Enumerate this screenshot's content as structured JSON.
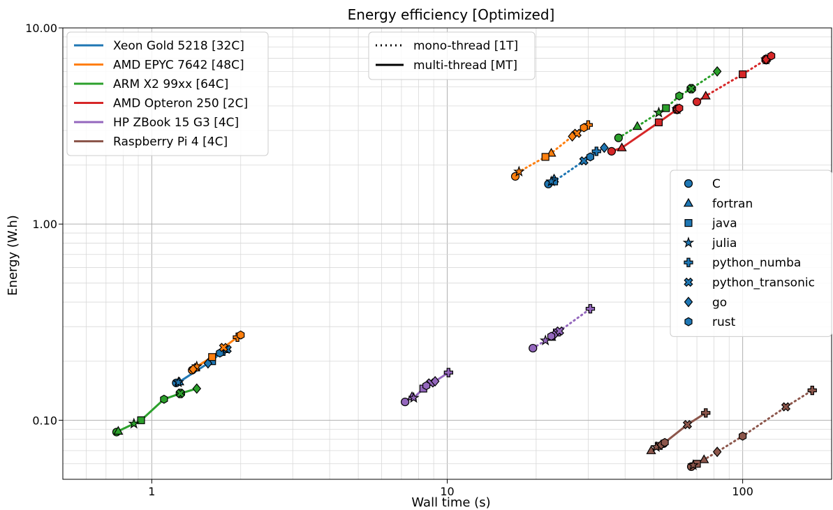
{
  "chart_data": {
    "type": "scatter",
    "title": "Energy efficiency [Optimized]",
    "xlabel": "Wall time (s)",
    "ylabel": "Energy (W.h)",
    "xscale": "log",
    "yscale": "log",
    "xlim": [
      0.5,
      200
    ],
    "ylim": [
      0.05,
      10
    ],
    "x_ticks": [
      {
        "value": 1,
        "label": "1"
      },
      {
        "value": 10,
        "label": "10"
      },
      {
        "value": 100,
        "label": "100"
      }
    ],
    "y_ticks": [
      {
        "value": 0.1,
        "label": "0.10"
      },
      {
        "value": 1,
        "label": "1.00"
      },
      {
        "value": 10,
        "label": "10.00"
      }
    ],
    "grid": true,
    "legends": {
      "machines": {
        "placement": "top-left",
        "items": [
          {
            "label": "Xeon Gold 5218 [32C]",
            "color": "#1f77b4"
          },
          {
            "label": "AMD EPYC 7642 [48C]",
            "color": "#ff7f0e"
          },
          {
            "label": "ARM X2 99xx [64C]",
            "color": "#2ca02c"
          },
          {
            "label": "AMD Opteron 250 [2C]",
            "color": "#d62728"
          },
          {
            "label": "HP ZBook 15 G3 [4C]",
            "color": "#9467bd"
          },
          {
            "label": "Raspberry Pi 4 [4C]",
            "color": "#8c564b"
          }
        ]
      },
      "threads": {
        "placement": "top-center",
        "items": [
          {
            "label": "mono-thread [1T]",
            "style": "dotted"
          },
          {
            "label": "multi-thread [MT]",
            "style": "solid"
          }
        ]
      },
      "languages": {
        "placement": "center-right",
        "items": [
          {
            "label": "C",
            "marker": "circle"
          },
          {
            "label": "fortran",
            "marker": "triangle"
          },
          {
            "label": "java",
            "marker": "square"
          },
          {
            "label": "julia",
            "marker": "star"
          },
          {
            "label": "python_numba",
            "marker": "plus"
          },
          {
            "label": "python_transonic",
            "marker": "x"
          },
          {
            "label": "go",
            "marker": "diamond"
          },
          {
            "label": "rust",
            "marker": "hexagon"
          }
        ]
      }
    },
    "series": [
      {
        "machine": "Xeon Gold 5218 [32C]",
        "mode": "multi-thread [MT]",
        "color": "#1f77b4",
        "style": "solid",
        "points": [
          {
            "lang": "C",
            "marker": "circle",
            "x": 1.21,
            "y": 0.155
          },
          {
            "lang": "fortran",
            "marker": "triangle",
            "x": 1.24,
            "y": 0.157
          },
          {
            "lang": "java",
            "marker": "square",
            "x": 1.6,
            "y": 0.2
          },
          {
            "lang": "julia",
            "marker": "star",
            "x": 1.23,
            "y": 0.156
          },
          {
            "lang": "python_numba",
            "marker": "plus",
            "x": 1.75,
            "y": 0.225
          },
          {
            "lang": "python_transonic",
            "marker": "x",
            "x": 1.8,
            "y": 0.23
          },
          {
            "lang": "go",
            "marker": "diamond",
            "x": 1.55,
            "y": 0.195
          },
          {
            "lang": "rust",
            "marker": "hexagon",
            "x": 1.7,
            "y": 0.22
          }
        ]
      },
      {
        "machine": "Xeon Gold 5218 [32C]",
        "mode": "mono-thread [1T]",
        "color": "#1f77b4",
        "style": "dotted",
        "points": [
          {
            "lang": "C",
            "marker": "circle",
            "x": 22,
            "y": 1.6
          },
          {
            "lang": "fortran",
            "marker": "triangle",
            "x": 23,
            "y": 1.7
          },
          {
            "lang": "java",
            "marker": "square",
            "x": 23,
            "y": 1.65
          },
          {
            "lang": "julia",
            "marker": "star",
            "x": 22.5,
            "y": 1.65
          },
          {
            "lang": "python_numba",
            "marker": "plus",
            "x": 32,
            "y": 2.35
          },
          {
            "lang": "python_transonic",
            "marker": "x",
            "x": 29,
            "y": 2.1
          },
          {
            "lang": "go",
            "marker": "diamond",
            "x": 34,
            "y": 2.45
          },
          {
            "lang": "rust",
            "marker": "hexagon",
            "x": 30.5,
            "y": 2.2
          }
        ]
      },
      {
        "machine": "AMD EPYC 7642 [48C]",
        "mode": "multi-thread [MT]",
        "color": "#ff7f0e",
        "style": "solid",
        "points": [
          {
            "lang": "C",
            "marker": "circle",
            "x": 1.37,
            "y": 0.18
          },
          {
            "lang": "fortran",
            "marker": "triangle",
            "x": 1.4,
            "y": 0.185
          },
          {
            "lang": "java",
            "marker": "square",
            "x": 1.6,
            "y": 0.21
          },
          {
            "lang": "julia",
            "marker": "star",
            "x": 1.42,
            "y": 0.188
          },
          {
            "lang": "python_numba",
            "marker": "plus",
            "x": 1.95,
            "y": 0.265
          },
          {
            "lang": "python_transonic",
            "marker": "x",
            "x": 1.75,
            "y": 0.235
          },
          {
            "lang": "go",
            "marker": "diamond",
            "x": 1.38,
            "y": 0.182
          },
          {
            "lang": "rust",
            "marker": "hexagon",
            "x": 2.0,
            "y": 0.272
          }
        ]
      },
      {
        "machine": "AMD EPYC 7642 [48C]",
        "mode": "mono-thread [1T]",
        "color": "#ff7f0e",
        "style": "dotted",
        "points": [
          {
            "lang": "C",
            "marker": "circle",
            "x": 17,
            "y": 1.75
          },
          {
            "lang": "fortran",
            "marker": "triangle",
            "x": 22.5,
            "y": 2.3
          },
          {
            "lang": "java",
            "marker": "square",
            "x": 21.5,
            "y": 2.2
          },
          {
            "lang": "julia",
            "marker": "star",
            "x": 17.5,
            "y": 1.85
          },
          {
            "lang": "python_numba",
            "marker": "plus",
            "x": 30,
            "y": 3.2
          },
          {
            "lang": "python_transonic",
            "marker": "x",
            "x": 27.5,
            "y": 2.9
          },
          {
            "lang": "go",
            "marker": "diamond",
            "x": 26.5,
            "y": 2.8
          },
          {
            "lang": "rust",
            "marker": "hexagon",
            "x": 29,
            "y": 3.1
          }
        ]
      },
      {
        "machine": "ARM X2 99xx [64C]",
        "mode": "multi-thread [MT]",
        "color": "#2ca02c",
        "style": "solid",
        "points": [
          {
            "lang": "C",
            "marker": "circle",
            "x": 0.76,
            "y": 0.087
          },
          {
            "lang": "fortran",
            "marker": "triangle",
            "x": 0.77,
            "y": 0.088
          },
          {
            "lang": "java",
            "marker": "square",
            "x": 0.92,
            "y": 0.1
          },
          {
            "lang": "julia",
            "marker": "star",
            "x": 0.87,
            "y": 0.096
          },
          {
            "lang": "python_numba",
            "marker": "plus",
            "x": 1.25,
            "y": 0.137
          },
          {
            "lang": "python_transonic",
            "marker": "x",
            "x": 1.25,
            "y": 0.137
          },
          {
            "lang": "go",
            "marker": "diamond",
            "x": 1.42,
            "y": 0.145
          },
          {
            "lang": "rust",
            "marker": "hexagon",
            "x": 1.1,
            "y": 0.128
          }
        ]
      },
      {
        "machine": "ARM X2 99xx [64C]",
        "mode": "mono-thread [1T]",
        "color": "#2ca02c",
        "style": "dotted",
        "points": [
          {
            "lang": "C",
            "marker": "circle",
            "x": 38,
            "y": 2.75
          },
          {
            "lang": "fortran",
            "marker": "triangle",
            "x": 44,
            "y": 3.15
          },
          {
            "lang": "java",
            "marker": "square",
            "x": 55,
            "y": 3.9
          },
          {
            "lang": "julia",
            "marker": "star",
            "x": 52,
            "y": 3.7
          },
          {
            "lang": "python_numba",
            "marker": "plus",
            "x": 67,
            "y": 4.9
          },
          {
            "lang": "python_transonic",
            "marker": "x",
            "x": 67,
            "y": 4.9
          },
          {
            "lang": "go",
            "marker": "diamond",
            "x": 82,
            "y": 6.0
          },
          {
            "lang": "rust",
            "marker": "hexagon",
            "x": 61,
            "y": 4.5
          }
        ]
      },
      {
        "machine": "AMD Opteron 250 [2C]",
        "mode": "multi-thread [MT]",
        "color": "#d62728",
        "style": "solid",
        "points": [
          {
            "lang": "C",
            "marker": "circle",
            "x": 36,
            "y": 2.35
          },
          {
            "lang": "fortran",
            "marker": "triangle",
            "x": 39,
            "y": 2.45
          },
          {
            "lang": "java",
            "marker": "square",
            "x": 52,
            "y": 3.3
          },
          {
            "lang": "julia",
            "marker": "star",
            "x": 60,
            "y": 3.85
          },
          {
            "lang": "python_numba",
            "marker": "plus",
            "x": 60,
            "y": 3.85
          },
          {
            "lang": "python_transonic",
            "marker": "x",
            "x": 60,
            "y": 3.85
          },
          {
            "lang": "go",
            "marker": "diamond",
            "x": 60,
            "y": 3.85
          },
          {
            "lang": "rust",
            "marker": "hexagon",
            "x": 61,
            "y": 3.9
          }
        ]
      },
      {
        "machine": "AMD Opteron 250 [2C]",
        "mode": "mono-thread [1T]",
        "color": "#d62728",
        "style": "dotted",
        "points": [
          {
            "lang": "C",
            "marker": "circle",
            "x": 70,
            "y": 4.2
          },
          {
            "lang": "fortran",
            "marker": "triangle",
            "x": 75,
            "y": 4.5
          },
          {
            "lang": "java",
            "marker": "square",
            "x": 100,
            "y": 5.8
          },
          {
            "lang": "julia",
            "marker": "star",
            "x": 120,
            "y": 6.9
          },
          {
            "lang": "python_numba",
            "marker": "plus",
            "x": 120,
            "y": 6.9
          },
          {
            "lang": "python_transonic",
            "marker": "x",
            "x": 120,
            "y": 6.9
          },
          {
            "lang": "go",
            "marker": "diamond",
            "x": 120,
            "y": 6.9
          },
          {
            "lang": "rust",
            "marker": "hexagon",
            "x": 125,
            "y": 7.2
          }
        ]
      },
      {
        "machine": "HP ZBook 15 G3 [4C]",
        "mode": "multi-thread [MT]",
        "color": "#9467bd",
        "style": "solid",
        "points": [
          {
            "lang": "C",
            "marker": "circle",
            "x": 7.2,
            "y": 0.124
          },
          {
            "lang": "fortran",
            "marker": "triangle",
            "x": 7.6,
            "y": 0.132
          },
          {
            "lang": "java",
            "marker": "square",
            "x": 8.3,
            "y": 0.145
          },
          {
            "lang": "julia",
            "marker": "star",
            "x": 7.7,
            "y": 0.13
          },
          {
            "lang": "python_numba",
            "marker": "plus",
            "x": 10.1,
            "y": 0.175
          },
          {
            "lang": "python_transonic",
            "marker": "x",
            "x": 8.8,
            "y": 0.155
          },
          {
            "lang": "go",
            "marker": "diamond",
            "x": 9.1,
            "y": 0.158
          },
          {
            "lang": "rust",
            "marker": "hexagon",
            "x": 8.5,
            "y": 0.15
          }
        ]
      },
      {
        "machine": "HP ZBook 15 G3 [4C]",
        "mode": "mono-thread [1T]",
        "color": "#9467bd",
        "style": "dotted",
        "points": [
          {
            "lang": "C",
            "marker": "circle",
            "x": 19.5,
            "y": 0.233
          },
          {
            "lang": "fortran",
            "marker": "triangle",
            "x": 22.5,
            "y": 0.265
          },
          {
            "lang": "java",
            "marker": "square",
            "x": 23.5,
            "y": 0.28
          },
          {
            "lang": "julia",
            "marker": "star",
            "x": 21.5,
            "y": 0.255
          },
          {
            "lang": "python_numba",
            "marker": "plus",
            "x": 30.5,
            "y": 0.37
          },
          {
            "lang": "python_transonic",
            "marker": "x",
            "x": 24,
            "y": 0.285
          },
          {
            "lang": "go",
            "marker": "diamond",
            "x": 23,
            "y": 0.272
          },
          {
            "lang": "rust",
            "marker": "hexagon",
            "x": 22.5,
            "y": 0.268
          }
        ]
      },
      {
        "machine": "Raspberry Pi 4 [4C]",
        "mode": "multi-thread [MT]",
        "color": "#8c564b",
        "style": "solid",
        "points": [
          {
            "lang": "C",
            "marker": "circle",
            "x": 54,
            "y": 0.076
          },
          {
            "lang": "fortran",
            "marker": "triangle",
            "x": 49,
            "y": 0.07
          },
          {
            "lang": "java",
            "marker": "square",
            "x": 52,
            "y": 0.074
          },
          {
            "lang": "julia",
            "marker": "star",
            "x": 51,
            "y": 0.073
          },
          {
            "lang": "python_numba",
            "marker": "plus",
            "x": 75,
            "y": 0.109
          },
          {
            "lang": "python_transonic",
            "marker": "x",
            "x": 65,
            "y": 0.095
          },
          {
            "lang": "go",
            "marker": "diamond",
            "x": 53,
            "y": 0.075
          },
          {
            "lang": "rust",
            "marker": "hexagon",
            "x": 54.5,
            "y": 0.077
          }
        ]
      },
      {
        "machine": "Raspberry Pi 4 [4C]",
        "mode": "mono-thread [1T]",
        "color": "#8c564b",
        "style": "dotted",
        "points": [
          {
            "lang": "C",
            "marker": "circle",
            "x": 67,
            "y": 0.058
          },
          {
            "lang": "fortran",
            "marker": "triangle",
            "x": 74,
            "y": 0.063
          },
          {
            "lang": "java",
            "marker": "square",
            "x": 70,
            "y": 0.06
          },
          {
            "lang": "julia",
            "marker": "star",
            "x": 68,
            "y": 0.059
          },
          {
            "lang": "python_numba",
            "marker": "plus",
            "x": 172,
            "y": 0.142
          },
          {
            "lang": "python_transonic",
            "marker": "x",
            "x": 140,
            "y": 0.117
          },
          {
            "lang": "go",
            "marker": "diamond",
            "x": 82,
            "y": 0.069
          },
          {
            "lang": "rust",
            "marker": "hexagon",
            "x": 100,
            "y": 0.083
          }
        ]
      }
    ]
  }
}
